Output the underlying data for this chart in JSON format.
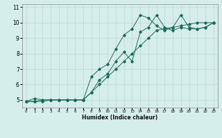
{
  "xlabel": "Humidex (Indice chaleur)",
  "background_color": "#d6eeeb",
  "grid_color": "#c0d8d5",
  "line_color": "#1a6b5a",
  "xlim": [
    -0.5,
    23.5
  ],
  "ylim": [
    4.5,
    11.2
  ],
  "yticks": [
    5,
    6,
    7,
    8,
    9,
    10,
    11
  ],
  "xticks": [
    0,
    1,
    2,
    3,
    4,
    5,
    6,
    7,
    8,
    9,
    10,
    11,
    12,
    13,
    14,
    15,
    16,
    17,
    18,
    19,
    20,
    21,
    22,
    23
  ],
  "series": [
    [
      4.9,
      4.9,
      4.9,
      5.0,
      5.0,
      5.0,
      5.0,
      5.0,
      5.5,
      6.3,
      6.7,
      7.5,
      8.1,
      7.5,
      9.4,
      9.7,
      10.5,
      9.7,
      9.5,
      9.7,
      9.6,
      9.6,
      9.7,
      10.0
    ],
    [
      4.9,
      4.9,
      5.0,
      5.0,
      5.0,
      5.0,
      5.0,
      5.0,
      6.5,
      7.0,
      7.3,
      8.3,
      9.2,
      9.6,
      10.5,
      10.3,
      9.8,
      9.5,
      9.7,
      10.5,
      9.7,
      9.6,
      9.7,
      10.0
    ],
    [
      4.9,
      5.1,
      5.0,
      5.0,
      5.0,
      5.0,
      5.0,
      5.0,
      5.5,
      6.0,
      6.5,
      7.0,
      7.5,
      8.0,
      8.5,
      9.0,
      9.5,
      9.6,
      9.7,
      9.8,
      9.9,
      10.0,
      10.0,
      10.0
    ]
  ]
}
